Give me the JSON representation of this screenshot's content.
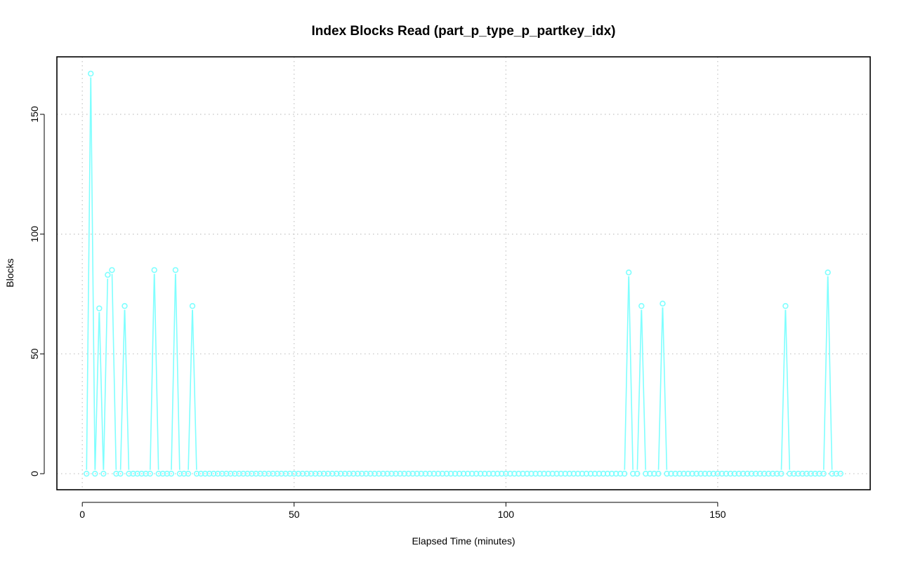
{
  "chart_data": {
    "type": "line",
    "title": "Index Blocks Read (part_p_type_p_partkey_idx)",
    "xlabel": "Elapsed Time (minutes)",
    "ylabel": "Blocks",
    "xlim": [
      -6,
      186
    ],
    "ylim": [
      -6.7,
      174
    ],
    "xticks": [
      0,
      50,
      100,
      150
    ],
    "yticks": [
      0,
      50,
      100,
      150
    ],
    "grid": true,
    "series_color": "#7fffff",
    "series": [
      {
        "x": [
          1,
          2,
          3,
          4,
          5,
          6,
          7,
          8,
          9,
          10,
          11,
          12,
          13,
          14,
          15,
          16,
          17,
          18,
          19,
          20,
          21,
          22,
          23,
          24,
          25,
          26,
          27,
          28,
          29,
          30,
          31,
          32,
          33,
          34,
          35,
          36,
          37,
          38,
          39,
          40,
          41,
          42,
          43,
          44,
          45,
          46,
          47,
          48,
          49,
          50,
          51,
          52,
          53,
          54,
          55,
          56,
          57,
          58,
          59,
          60,
          61,
          62,
          63,
          64,
          65,
          66,
          67,
          68,
          69,
          70,
          71,
          72,
          73,
          74,
          75,
          76,
          77,
          78,
          79,
          80,
          81,
          82,
          83,
          84,
          85,
          86,
          87,
          88,
          89,
          90,
          91,
          92,
          93,
          94,
          95,
          96,
          97,
          98,
          99,
          100,
          101,
          102,
          103,
          104,
          105,
          106,
          107,
          108,
          109,
          110,
          111,
          112,
          113,
          114,
          115,
          116,
          117,
          118,
          119,
          120,
          121,
          122,
          123,
          124,
          125,
          126,
          127,
          128,
          129,
          130,
          131,
          132,
          133,
          134,
          135,
          136,
          137,
          138,
          139,
          140,
          141,
          142,
          143,
          144,
          145,
          146,
          147,
          148,
          149,
          150,
          151,
          152,
          153,
          154,
          155,
          156,
          157,
          158,
          159,
          160,
          161,
          162,
          163,
          164,
          165,
          166,
          167,
          168,
          169,
          170,
          171,
          172,
          173,
          174,
          175,
          176,
          177,
          178,
          179
        ],
        "values": [
          0,
          167,
          0,
          69,
          0,
          83,
          85,
          0,
          0,
          70,
          0,
          0,
          0,
          0,
          0,
          0,
          85,
          0,
          0,
          0,
          0,
          85,
          0,
          0,
          0,
          70,
          0,
          0,
          0,
          0,
          0,
          0,
          0,
          0,
          0,
          0,
          0,
          0,
          0,
          0,
          0,
          0,
          0,
          0,
          0,
          0,
          0,
          0,
          0,
          0,
          0,
          0,
          0,
          0,
          0,
          0,
          0,
          0,
          0,
          0,
          0,
          0,
          0,
          0,
          0,
          0,
          0,
          0,
          0,
          0,
          0,
          0,
          0,
          0,
          0,
          0,
          0,
          0,
          0,
          0,
          0,
          0,
          0,
          0,
          0,
          0,
          0,
          0,
          0,
          0,
          0,
          0,
          0,
          0,
          0,
          0,
          0,
          0,
          0,
          0,
          0,
          0,
          0,
          0,
          0,
          0,
          0,
          0,
          0,
          0,
          0,
          0,
          0,
          0,
          0,
          0,
          0,
          0,
          0,
          0,
          0,
          0,
          0,
          0,
          0,
          0,
          0,
          0,
          84,
          0,
          0,
          70,
          0,
          0,
          0,
          0,
          71,
          0,
          0,
          0,
          0,
          0,
          0,
          0,
          0,
          0,
          0,
          0,
          0,
          0,
          0,
          0,
          0,
          0,
          0,
          0,
          0,
          0,
          0,
          0,
          0,
          0,
          0,
          0,
          0,
          70,
          0,
          0,
          0,
          0,
          0,
          0,
          0,
          0,
          0,
          84,
          0,
          0,
          0
        ]
      }
    ]
  }
}
